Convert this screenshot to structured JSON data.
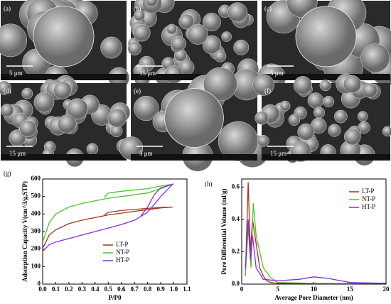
{
  "images": [
    {
      "label": "(a)",
      "scale": "5 μm"
    },
    {
      "label": "(b)",
      "scale": "15 μm"
    },
    {
      "label": "(c)",
      "scale": "5 μm"
    },
    {
      "label": "(d)",
      "scale": "15 μm"
    },
    {
      "label": "(e)",
      "scale": "5 μm"
    },
    {
      "label": "(f)",
      "scale": "15 μm"
    }
  ],
  "chart_data": [
    {
      "type": "line",
      "panel_label": "(g)",
      "y_label": "Adsorption Capacity V(cm^3/g,STP)",
      "x_label": "P/P0",
      "xlim": [
        0,
        1.1
      ],
      "xticks": [
        {
          "value": 0,
          "label": "0.0"
        },
        0.1,
        0.2,
        0.3,
        0.4,
        0.5,
        0.6,
        0.7,
        0.8,
        0.9,
        {
          "value": 1,
          "label": "1.0"
        },
        1.1
      ],
      "ylim": [
        0,
        600
      ],
      "yticks": [
        0,
        100,
        200,
        300,
        400,
        500,
        600
      ],
      "legend": "lower-center",
      "series": [
        {
          "name": "LT-P",
          "color": "#a8321e",
          "x": [
            0.005,
            0.05,
            0.1,
            0.2,
            0.3,
            0.4,
            0.5,
            0.6,
            0.7,
            0.8,
            0.9,
            0.99,
            0.9,
            0.8,
            0.6,
            0.5,
            0.47
          ],
          "values": [
            210,
            280,
            310,
            345,
            365,
            380,
            395,
            405,
            415,
            425,
            435,
            440,
            438,
            432,
            420,
            410,
            395
          ]
        },
        {
          "name": "NT-P",
          "color": "#4fc32a",
          "x": [
            0.005,
            0.05,
            0.1,
            0.2,
            0.3,
            0.4,
            0.5,
            0.6,
            0.7,
            0.8,
            0.9,
            0.99,
            0.9,
            0.8,
            0.6,
            0.5,
            0.47
          ],
          "values": [
            250,
            350,
            400,
            440,
            460,
            475,
            490,
            500,
            510,
            520,
            545,
            570,
            560,
            545,
            530,
            520,
            495
          ]
        },
        {
          "name": "HT-P",
          "color": "#8a2be2",
          "x": [
            0.005,
            0.05,
            0.1,
            0.2,
            0.3,
            0.4,
            0.5,
            0.6,
            0.7,
            0.8,
            0.9,
            0.99,
            0.9,
            0.85,
            0.8,
            0.75
          ],
          "values": [
            190,
            225,
            240,
            260,
            280,
            300,
            320,
            340,
            365,
            410,
            500,
            570,
            550,
            510,
            440,
            390
          ]
        }
      ]
    },
    {
      "type": "line",
      "panel_label": "(h)",
      "y_label": "Pore Differential Volume (ml/g)",
      "x_label": "Average Pore Diameter (nm)",
      "xlim": [
        0,
        20
      ],
      "xticks": [
        0,
        5,
        10,
        15,
        20
      ],
      "ylim": [
        0,
        0.65
      ],
      "yticks": [
        {
          "value": 0,
          "label": "0.0"
        },
        0.2,
        0.4,
        0.6
      ],
      "legend": "upper-right",
      "series": [
        {
          "name": "LT-P",
          "color": "#a8321e",
          "x": [
            0.5,
            0.9,
            1.2,
            1.5,
            2,
            2.5,
            3,
            3.5,
            4,
            5,
            10,
            20
          ],
          "values": [
            0.05,
            0.63,
            0.2,
            0.4,
            0.25,
            0.1,
            0.05,
            0.02,
            0.01,
            0.005,
            0.003,
            0.001
          ]
        },
        {
          "name": "NT-P",
          "color": "#4fc32a",
          "x": [
            0.5,
            0.9,
            1.3,
            1.6,
            2,
            2.5,
            3,
            4,
            5,
            10,
            20
          ],
          "values": [
            0.05,
            0.35,
            0.1,
            0.5,
            0.3,
            0.2,
            0.1,
            0.04,
            0.01,
            0.005,
            0.002
          ]
        },
        {
          "name": "HT-P",
          "color": "#8a2be2",
          "x": [
            0.5,
            0.9,
            1.2,
            1.5,
            2,
            3,
            5,
            8,
            10,
            12,
            15,
            20
          ],
          "values": [
            0.1,
            0.4,
            0.15,
            0.3,
            0.1,
            0.03,
            0.02,
            0.03,
            0.045,
            0.035,
            0.01,
            0.005
          ]
        }
      ]
    }
  ]
}
